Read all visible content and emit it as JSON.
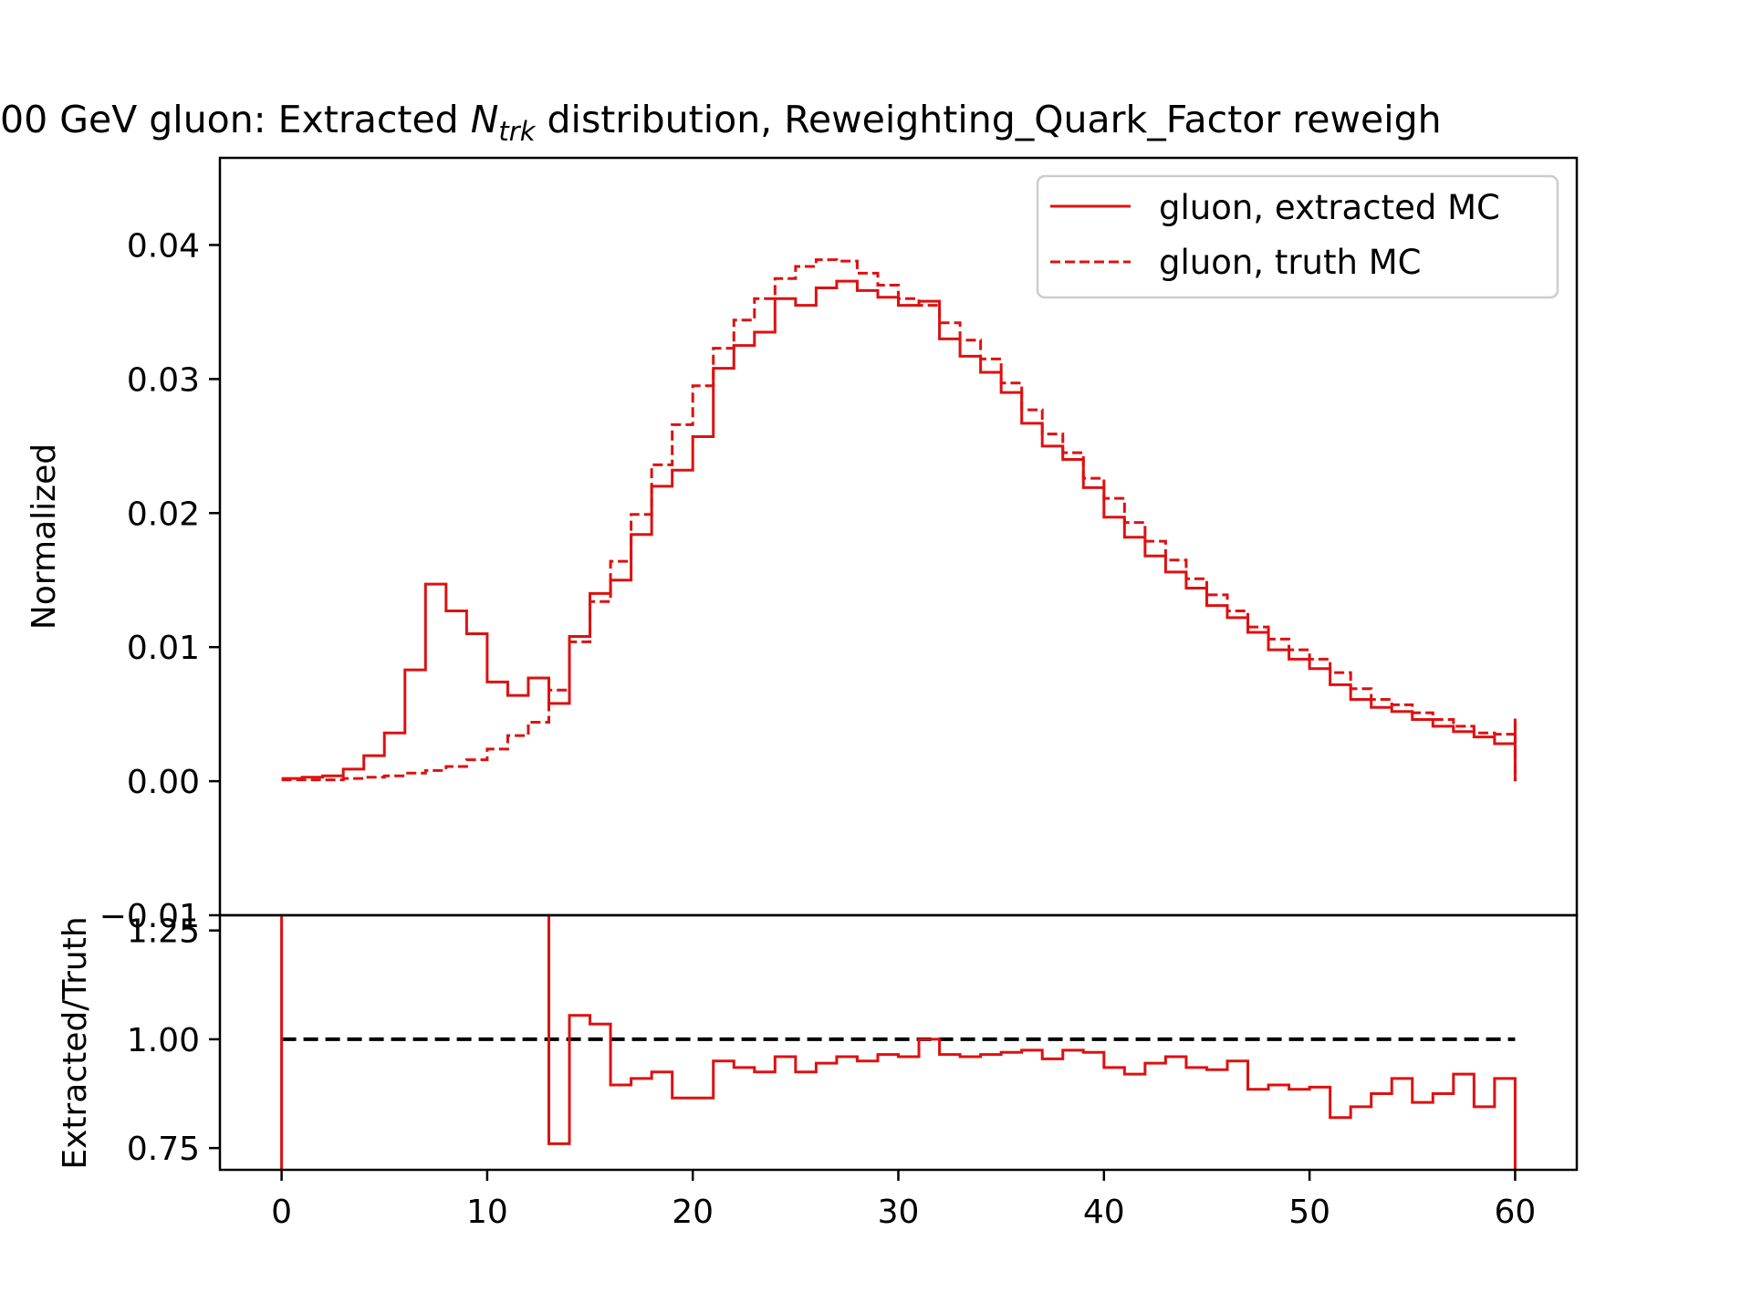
{
  "chart_data": [
    {
      "type": "line",
      "drawstyle": "steps",
      "panel": "main",
      "title_prefix": "00 GeV gluon: Extracted ",
      "title_symbol": "N",
      "title_subscript": "trk",
      "title_suffix": " distribution, Reweighting_Quark_Factor reweigh",
      "xlabel": "",
      "ylabel": "Normalized",
      "xlim": [
        -3,
        63
      ],
      "ylim": [
        -0.01,
        0.0465
      ],
      "yticks": [
        "−0.01",
        "0.00",
        "0.01",
        "0.02",
        "0.03",
        "0.04"
      ],
      "ytick_values": [
        -0.01,
        0.0,
        0.01,
        0.02,
        0.03,
        0.04
      ],
      "grid": false,
      "legend_position": "top-right",
      "bin_edges": [
        0,
        1,
        2,
        3,
        4,
        5,
        6,
        7,
        8,
        9,
        10,
        11,
        12,
        13,
        14,
        15,
        16,
        17,
        18,
        19,
        20,
        21,
        22,
        23,
        24,
        25,
        26,
        27,
        28,
        29,
        30,
        31,
        32,
        33,
        34,
        35,
        36,
        37,
        38,
        39,
        40,
        41,
        42,
        43,
        44,
        45,
        46,
        47,
        48,
        49,
        50,
        51,
        52,
        53,
        54,
        55,
        56,
        57,
        58,
        59,
        60
      ],
      "series": [
        {
          "name": "gluon, extracted MC",
          "color": "#dd1111",
          "linestyle": "solid",
          "values": [
            0.0002,
            0.0003,
            0.0004,
            0.0009,
            0.0019,
            0.0036,
            0.0083,
            0.0147,
            0.0127,
            0.011,
            0.0074,
            0.0064,
            0.0077,
            0.0058,
            0.0108,
            0.014,
            0.015,
            0.0184,
            0.022,
            0.0232,
            0.0257,
            0.0308,
            0.0325,
            0.0335,
            0.036,
            0.0355,
            0.0368,
            0.0373,
            0.0366,
            0.0361,
            0.0355,
            0.0358,
            0.033,
            0.0317,
            0.0305,
            0.029,
            0.0267,
            0.025,
            0.024,
            0.0219,
            0.0197,
            0.0182,
            0.0168,
            0.0156,
            0.0144,
            0.0131,
            0.0122,
            0.0111,
            0.0098,
            0.0091,
            0.0084,
            0.0072,
            0.0061,
            0.0055,
            0.0052,
            0.0046,
            0.0041,
            0.0037,
            0.0033,
            0.0028,
            0.0044
          ]
        },
        {
          "name": "gluon, truth MC",
          "color": "#dd1111",
          "linestyle": "dashed",
          "values": [
            0.0001,
            0.0001,
            0.0001,
            0.0002,
            0.0003,
            0.0004,
            0.0006,
            0.0008,
            0.0011,
            0.0016,
            0.0024,
            0.0034,
            0.0044,
            0.0068,
            0.0104,
            0.0134,
            0.0164,
            0.0199,
            0.0236,
            0.0266,
            0.0295,
            0.0323,
            0.0344,
            0.036,
            0.0375,
            0.0384,
            0.0389,
            0.0388,
            0.0379,
            0.037,
            0.036,
            0.0355,
            0.0342,
            0.0329,
            0.0315,
            0.0297,
            0.0277,
            0.0259,
            0.0245,
            0.0226,
            0.0211,
            0.0193,
            0.0179,
            0.0165,
            0.0151,
            0.0139,
            0.0127,
            0.0115,
            0.0106,
            0.0098,
            0.0091,
            0.0081,
            0.0069,
            0.0061,
            0.0057,
            0.0051,
            0.0046,
            0.0041,
            0.0036,
            0.0035,
            0.0048
          ]
        }
      ]
    },
    {
      "type": "line",
      "drawstyle": "steps",
      "panel": "ratio",
      "xlabel": "",
      "ylabel": "Extracted/Truth",
      "xlim": [
        -3,
        63
      ],
      "ylim": [
        0.7,
        1.285
      ],
      "yticks": [
        "0.75",
        "1.00",
        "1.25"
      ],
      "ytick_values": [
        0.75,
        1.0,
        1.25
      ],
      "xticks": [
        "0",
        "10",
        "20",
        "30",
        "40",
        "50",
        "60"
      ],
      "xtick_values": [
        0,
        10,
        20,
        30,
        40,
        50,
        60
      ],
      "grid": false,
      "reference_line": {
        "y": 1.0,
        "color": "#000000",
        "linestyle": "dashed"
      },
      "series": [
        {
          "name": "",
          "color": "#dd1111",
          "linestyle": "solid",
          "x": [
            0,
            0,
            13,
            13,
            14,
            14,
            15,
            15,
            16,
            16,
            17,
            17,
            18,
            18,
            19,
            19,
            21,
            21,
            22,
            22,
            23,
            23,
            24,
            24,
            25,
            25,
            26,
            26,
            27,
            27,
            28,
            28,
            29,
            29,
            30,
            30,
            31,
            31,
            32,
            32,
            33,
            33,
            34,
            34,
            35,
            35,
            36,
            36,
            37,
            37,
            38,
            38,
            39,
            39,
            40,
            40,
            41,
            41,
            42,
            42,
            43,
            43,
            44,
            44,
            45,
            45,
            46,
            46,
            47,
            47,
            48,
            48,
            49,
            49,
            50,
            50,
            51,
            51,
            52,
            52,
            53,
            53,
            54,
            54,
            55,
            55,
            56,
            56,
            57,
            57,
            58,
            58,
            59,
            59,
            60,
            60
          ],
          "y": [
            0.7,
            1.4,
            1.4,
            0.76,
            0.76,
            1.055,
            1.055,
            1.035,
            1.035,
            0.895,
            0.895,
            0.91,
            0.91,
            0.925,
            0.925,
            0.865,
            0.865,
            0.95,
            0.95,
            0.935,
            0.935,
            0.925,
            0.925,
            0.96,
            0.96,
            0.925,
            0.925,
            0.945,
            0.945,
            0.96,
            0.96,
            0.95,
            0.95,
            0.965,
            0.965,
            0.96,
            0.96,
            1.0,
            1.0,
            0.965,
            0.965,
            0.96,
            0.96,
            0.965,
            0.965,
            0.97,
            0.97,
            0.975,
            0.975,
            0.955,
            0.955,
            0.975,
            0.975,
            0.97,
            0.97,
            0.935,
            0.935,
            0.92,
            0.92,
            0.945,
            0.945,
            0.96,
            0.96,
            0.935,
            0.935,
            0.93,
            0.93,
            0.95,
            0.95,
            0.885,
            0.885,
            0.895,
            0.895,
            0.885,
            0.885,
            0.89,
            0.89,
            0.82,
            0.82,
            0.845,
            0.845,
            0.875,
            0.875,
            0.91,
            0.91,
            0.855,
            0.855,
            0.875,
            0.875,
            0.92,
            0.92,
            0.845,
            0.845,
            0.91,
            0.91,
            0.7
          ]
        }
      ]
    }
  ]
}
